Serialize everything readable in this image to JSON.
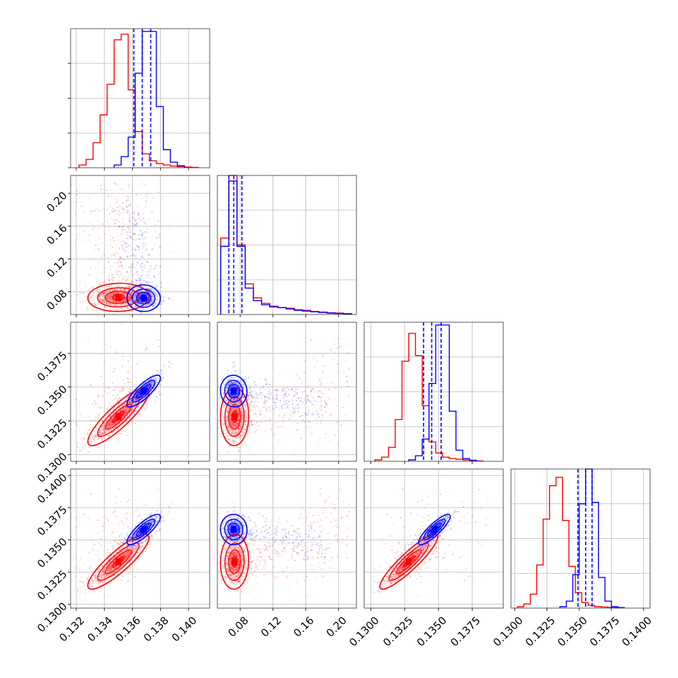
{
  "chart_data": {
    "type": "corner",
    "title": "",
    "grid": true,
    "parameters": [
      {
        "id": "p1",
        "range": [
          0.1316,
          0.1415
        ],
        "ticks": [
          0.132,
          0.134,
          0.136,
          0.138,
          0.14
        ],
        "tick_labels": [
          "0.132",
          "0.134",
          "0.136",
          "0.138",
          "0.140"
        ]
      },
      {
        "id": "p2",
        "range": [
          0.052,
          0.222
        ],
        "ticks": [
          0.08,
          0.12,
          0.16,
          0.2
        ],
        "tick_labels": [
          "0.08",
          "0.12",
          "0.16",
          "0.20"
        ]
      },
      {
        "id": "p3",
        "range": [
          0.1295,
          0.1398
        ],
        "ticks": [
          0.13,
          0.1325,
          0.135,
          0.1375
        ],
        "tick_labels": [
          "0.1300",
          "0.1325",
          "0.1350",
          "0.1375"
        ]
      },
      {
        "id": "p4",
        "range": [
          0.1297,
          0.1405
        ],
        "ticks": [
          0.13,
          0.1325,
          0.135,
          0.1375,
          0.14
        ],
        "tick_labels": [
          "0.1300",
          "0.1325",
          "0.1350",
          "0.1375",
          "0.1400"
        ]
      }
    ],
    "series": [
      {
        "color": "#ff0000",
        "quantile_lines": false,
        "marginals": [
          {
            "bin_edges": [
              0.1322,
              0.1327,
              0.1332,
              0.1337,
              0.1342,
              0.1347,
              0.1352,
              0.1357,
              0.1362,
              0.1367,
              0.1372,
              0.1377,
              0.1382,
              0.1387,
              0.1392,
              0.1397,
              0.1402,
              0.1407
            ],
            "heights": [
              0.02,
              0.06,
              0.18,
              0.38,
              0.6,
              0.92,
              0.96,
              0.56,
              0.26,
              0.1,
              0.05,
              0.03,
              0.02,
              0.012,
              0.008,
              0.005,
              0.003
            ]
          },
          {
            "bin_edges": [
              0.056,
              0.066,
              0.076,
              0.086,
              0.096,
              0.106,
              0.116,
              0.126,
              0.136,
              0.146,
              0.156,
              0.166,
              0.176,
              0.186,
              0.196,
              0.206,
              0.216
            ],
            "heights": [
              0.55,
              1.0,
              0.5,
              0.22,
              0.12,
              0.08,
              0.06,
              0.05,
              0.045,
              0.035,
              0.03,
              0.022,
              0.018,
              0.013,
              0.01,
              0.006
            ]
          },
          {
            "bin_edges": [
              0.1303,
              0.1308,
              0.1313,
              0.1318,
              0.1323,
              0.1328,
              0.1333,
              0.1338,
              0.1343,
              0.1348,
              0.1353,
              0.1358,
              0.1363,
              0.1368,
              0.1373,
              0.1378,
              0.1383
            ],
            "heights": [
              0.01,
              0.03,
              0.1,
              0.3,
              0.72,
              0.92,
              0.76,
              0.4,
              0.14,
              0.06,
              0.03,
              0.02,
              0.015,
              0.01,
              0.006,
              0.003
            ]
          },
          {
            "bin_edges": [
              0.1302,
              0.1307,
              0.1312,
              0.1317,
              0.1322,
              0.1327,
              0.1332,
              0.1337,
              0.1342,
              0.1347,
              0.1352,
              0.1357,
              0.1362,
              0.1367,
              0.1372,
              0.1377,
              0.1382
            ],
            "heights": [
              0.01,
              0.03,
              0.1,
              0.31,
              0.64,
              0.88,
              0.94,
              0.63,
              0.3,
              0.11,
              0.04,
              0.02,
              0.01,
              0.008,
              0.005,
              0.003
            ]
          }
        ],
        "peaks": {
          "p1": 0.135,
          "p2": 0.073,
          "p3": 0.1328,
          "p4": 0.1333
        }
      },
      {
        "color": "#0000ff",
        "quantile_lines": true,
        "marginals": [
          {
            "bin_edges": [
              0.1347,
              0.1352,
              0.1357,
              0.1362,
              0.1367,
              0.1372,
              0.1377,
              0.1382,
              0.1387,
              0.1392,
              0.1397
            ],
            "heights": [
              0.02,
              0.08,
              0.22,
              0.68,
              0.98,
              0.98,
              0.44,
              0.13,
              0.04,
              0.015
            ]
          },
          {
            "bin_edges": [
              0.056,
              0.066,
              0.076,
              0.086,
              0.096,
              0.106,
              0.116,
              0.126,
              0.136,
              0.146,
              0.156,
              0.166,
              0.176,
              0.186,
              0.196,
              0.206,
              0.216
            ],
            "heights": [
              0.49,
              0.96,
              0.49,
              0.19,
              0.1,
              0.07,
              0.055,
              0.05,
              0.04,
              0.03,
              0.025,
              0.02,
              0.015,
              0.01,
              0.008,
              0.005
            ]
          },
          {
            "bin_edges": [
              0.1328,
              0.1333,
              0.1338,
              0.1343,
              0.1348,
              0.1353,
              0.1358,
              0.1363,
              0.1368,
              0.1373,
              0.1378
            ],
            "heights": [
              0.01,
              0.04,
              0.16,
              0.56,
              0.98,
              0.98,
              0.36,
              0.08,
              0.02,
              0.008
            ]
          },
          {
            "bin_edges": [
              0.1335,
              0.134,
              0.1345,
              0.135,
              0.1355,
              0.136,
              0.1365,
              0.137,
              0.1375,
              0.138,
              0.1385
            ],
            "heights": [
              0.01,
              0.05,
              0.24,
              0.75,
              1.0,
              0.76,
              0.22,
              0.05,
              0.01,
              0.004
            ]
          }
        ],
        "quantiles": {
          "p1": [
            0.1361,
            0.1367,
            0.1373
          ],
          "p2": [
            0.066,
            0.072,
            0.082
          ],
          "p3": [
            0.1339,
            0.1345,
            0.1352
          ],
          "p4": [
            0.1349,
            0.1355,
            0.136
          ]
        },
        "peaks": {
          "p1": 0.1368,
          "p2": 0.072,
          "p3": 0.1347,
          "p4": 0.1358
        }
      }
    ],
    "scatter_cloud": {
      "red": {
        "p1_p2": "peak near (0.135, 0.072), tail toward large p2 widening in p1",
        "p1_p3": "strong positive correlation",
        "p1_p4": "strong positive correlation",
        "p2_p3": "peak near (0.072, 0.1328), tail toward large p2",
        "p2_p4": "peak near (0.072, 0.1333), tail toward large p2",
        "p3_p4": "strong positive correlation"
      },
      "blue": {
        "p1_p2": "peak near (0.1368, 0.072)",
        "p1_p3": "strong positive correlation",
        "p1_p4": "strong positive correlation",
        "p2_p3": "peak near (0.072, 0.1347)",
        "p2_p4": "peak near (0.072, 0.1358)",
        "p3_p4": "strong positive correlation"
      }
    }
  }
}
